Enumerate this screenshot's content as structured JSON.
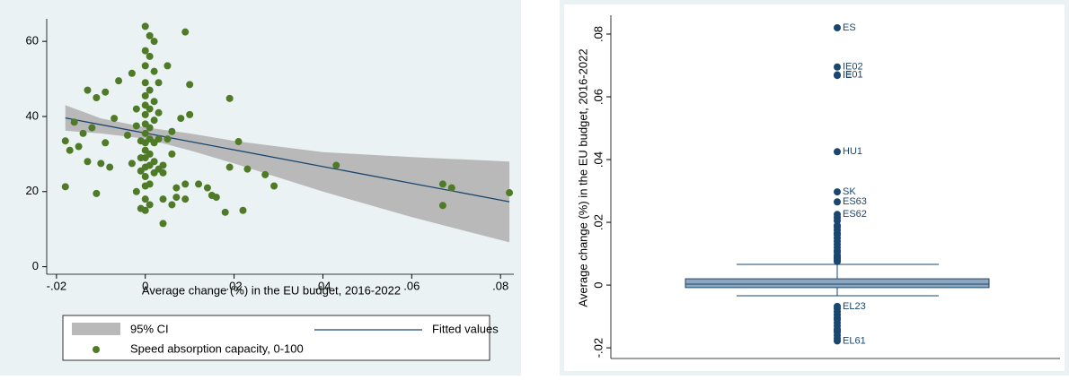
{
  "chart_data": [
    {
      "type": "scatter",
      "xlabel": "Average change (%) in the EU budget, 2016-2022",
      "xlim": [
        -0.0222,
        0.083
      ],
      "xticks": [
        {
          "value": -0.02,
          "label": "-.02"
        },
        0,
        {
          "value": 0.02,
          "label": ".02"
        },
        {
          "value": 0.04,
          "label": ".04"
        },
        {
          "value": 0.06,
          "label": ".06"
        },
        {
          "value": 0.08,
          "label": ".08"
        }
      ],
      "ylim": [
        -2,
        66
      ],
      "yticks": [
        0,
        20,
        40,
        60
      ],
      "ci": {
        "name": "95% CI",
        "color": "#b9b9b9",
        "x": [
          -0.018,
          -0.01,
          0,
          0.01,
          0.02,
          0.04,
          0.06,
          0.082
        ],
        "lower": [
          36.2,
          35.5,
          34.1,
          31.0,
          27.5,
          20.0,
          13.2,
          6.5
        ],
        "upper": [
          43.0,
          39.5,
          37.1,
          35.5,
          33.5,
          30.5,
          29.2,
          28.0
        ]
      },
      "fit": {
        "name": "Fitted values",
        "color": "#1a476f",
        "x": [
          -0.018,
          0.082
        ],
        "y": [
          39.6,
          17.3
        ]
      },
      "points": {
        "name": "Speed absorption capacity, 0-100",
        "color": "#4f7a28",
        "x": [
          -0.018,
          -0.018,
          -0.017,
          -0.016,
          -0.015,
          -0.014,
          -0.013,
          -0.013,
          -0.012,
          -0.011,
          -0.011,
          -0.01,
          -0.009,
          -0.009,
          -0.008,
          -0.007,
          -0.006,
          -0.004,
          -0.003,
          -0.003,
          -0.002,
          -0.002,
          -0.002,
          -0.001,
          -0.001,
          -0.001,
          -0.001,
          0,
          0,
          0,
          0,
          0,
          0,
          0,
          0,
          0,
          0,
          0,
          0,
          0,
          0,
          0,
          0,
          0,
          0.001,
          0.001,
          0.001,
          0.001,
          0.001,
          0.001,
          0.001,
          0.001,
          0.001,
          0.001,
          0.002,
          0.002,
          0.002,
          0.002,
          0.002,
          0.002,
          0.002,
          0.003,
          0.003,
          0.003,
          0.003,
          0.004,
          0.004,
          0.004,
          0.004,
          0.005,
          0.005,
          0.006,
          0.006,
          0.006,
          0.007,
          0.007,
          0.008,
          0.009,
          0.009,
          0.009,
          0.01,
          0.01,
          0.012,
          0.014,
          0.015,
          0.016,
          0.018,
          0.019,
          0.019,
          0.021,
          0.022,
          0.023,
          0.027,
          0.029,
          0.043,
          0.067,
          0.067,
          0.069,
          0.082
        ],
        "y": [
          33.5,
          21.3,
          31,
          38.5,
          32,
          35.5,
          47,
          28,
          37,
          19.5,
          45,
          27.5,
          46.5,
          33,
          26.5,
          39.5,
          49.5,
          35,
          27.5,
          51.5,
          20,
          42,
          37.5,
          15.5,
          33.5,
          29,
          25.5,
          64,
          57.5,
          53.5,
          49,
          45.5,
          43,
          40.5,
          38,
          35.5,
          33,
          31,
          29,
          26.5,
          24,
          21.5,
          18,
          15,
          61.5,
          56,
          47,
          42,
          37,
          34,
          30,
          27,
          22,
          16.5,
          60,
          52,
          44,
          39,
          33,
          28,
          25,
          49,
          41,
          34,
          26,
          11.5,
          18,
          27,
          25,
          53.5,
          34,
          36,
          16.5,
          30,
          21,
          18.5,
          39.5,
          62.5,
          22,
          18,
          48.5,
          40.5,
          22,
          21,
          19,
          18.5,
          14.5,
          44.8,
          26.5,
          33.3,
          15,
          26,
          24.5,
          21.5,
          27,
          22,
          16.3,
          21,
          19.7
        ]
      }
    },
    {
      "type": "box",
      "ylabel": "Average change (%) in the EU budget, 2016-2022",
      "ylim": [
        -0.0234,
        0.086
      ],
      "yticks": [
        {
          "value": -0.02,
          "label": "-.02"
        },
        0,
        {
          "value": 0.02,
          "label": ".02"
        },
        {
          "value": 0.04,
          "label": ".04"
        },
        {
          "value": 0.06,
          "label": ".06"
        },
        {
          "value": 0.08,
          "label": ".08"
        }
      ],
      "color": "#8fa7be",
      "box": {
        "whisker_low": -0.0034,
        "q1": -0.0008,
        "median": 0.0003,
        "q3": 0.002,
        "whisker_high": 0.0066
      },
      "outliers": {
        "color": "#1a476f",
        "values": [
          0.082,
          0.0695,
          0.067,
          0.0668,
          0.0425,
          0.0297,
          0.0265,
          0.0225,
          0.0215,
          0.0205,
          0.019,
          0.0185,
          0.0175,
          0.0165,
          0.016,
          0.015,
          0.014,
          0.013,
          0.012,
          0.011,
          0.0105,
          0.0095,
          0.009,
          0.0085,
          0.008,
          0.0075,
          -0.0068,
          -0.0075,
          -0.0085,
          -0.0095,
          -0.0105,
          -0.011,
          -0.012,
          -0.013,
          -0.014,
          -0.0145,
          -0.015,
          -0.016,
          -0.017,
          -0.0178
        ],
        "labels": [
          "ES",
          "IE02",
          "IE01",
          "IE",
          "HU1",
          "SK",
          "ES63",
          "ES62",
          null,
          null,
          null,
          null,
          null,
          null,
          null,
          null,
          null,
          null,
          null,
          null,
          null,
          null,
          null,
          null,
          null,
          null,
          "EL23",
          null,
          null,
          null,
          null,
          null,
          null,
          null,
          null,
          null,
          null,
          null,
          null,
          "EL61"
        ]
      }
    }
  ]
}
